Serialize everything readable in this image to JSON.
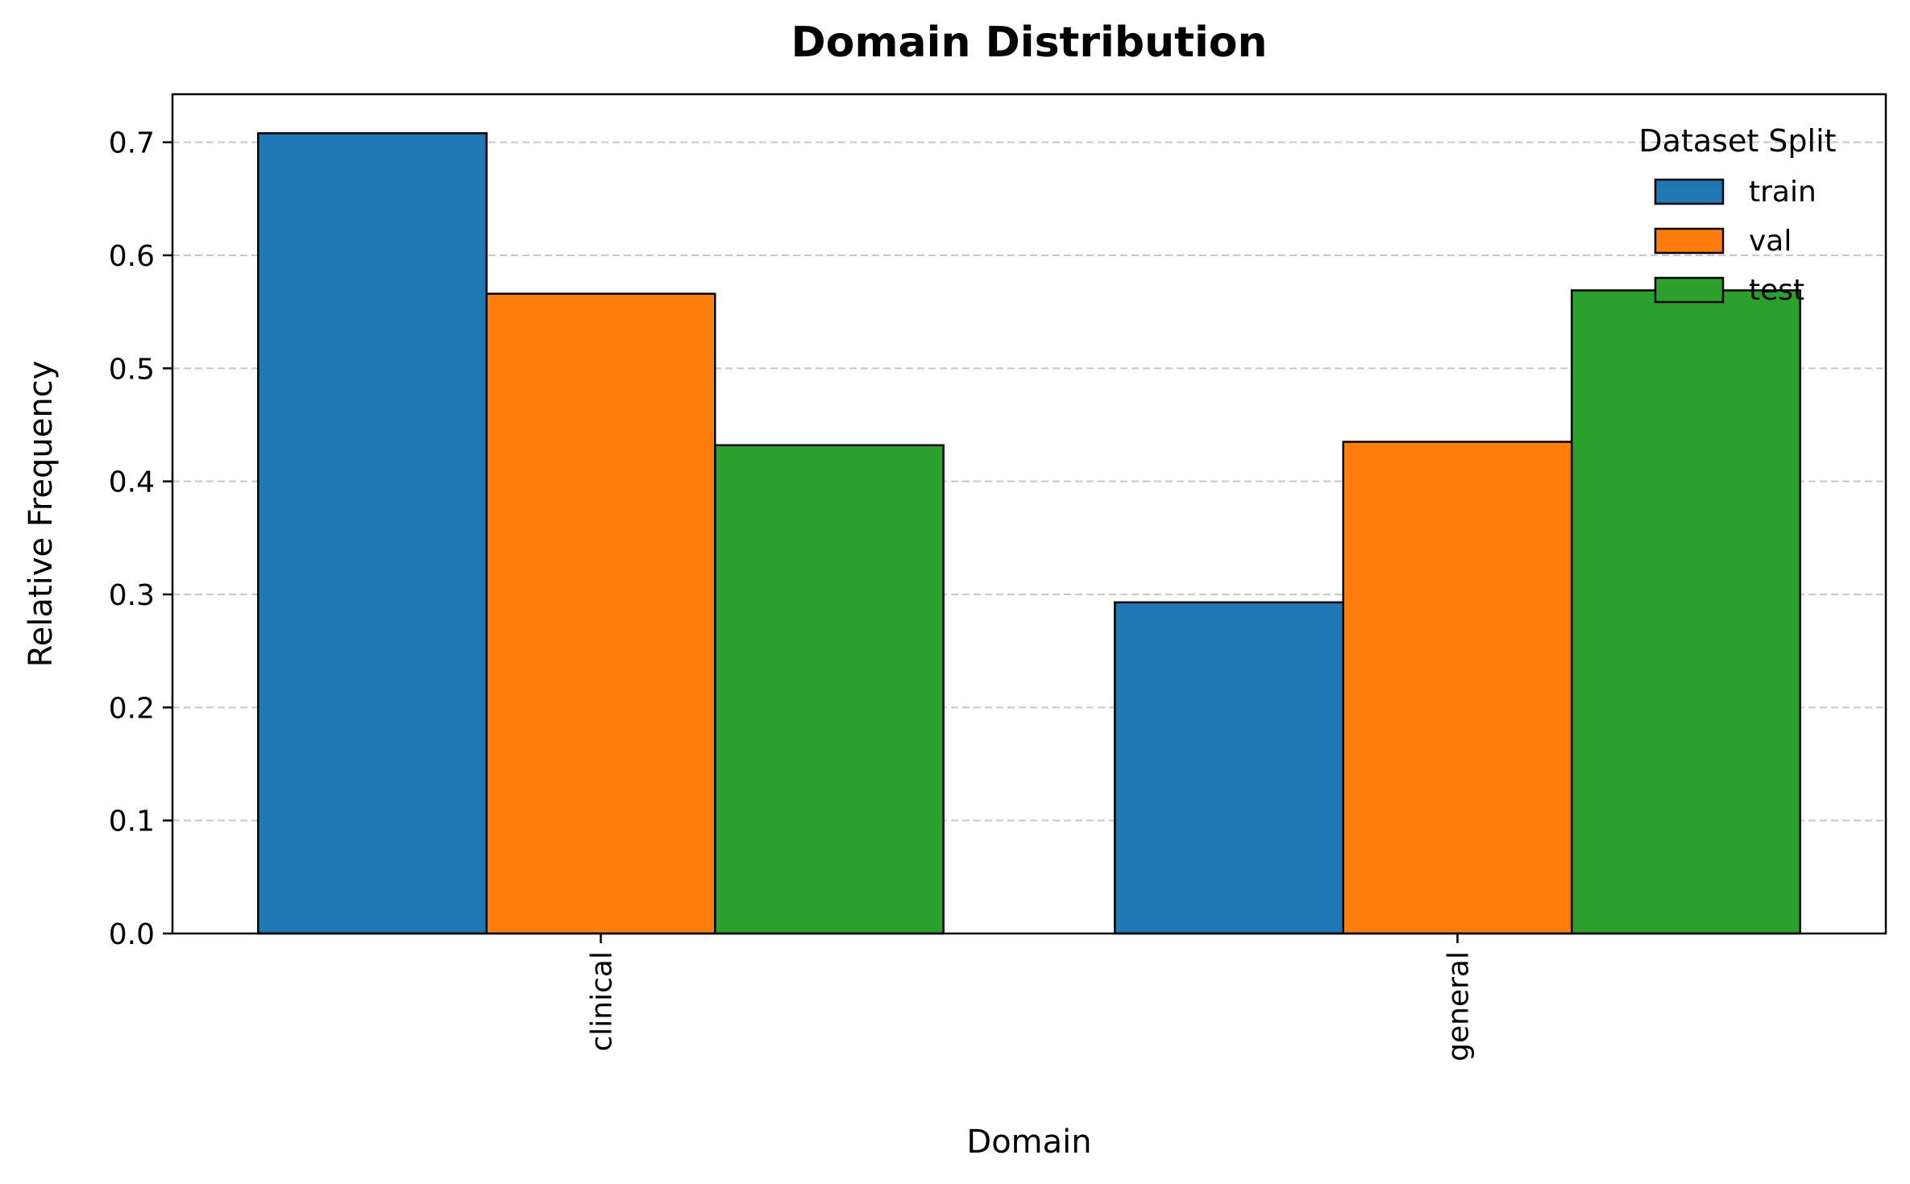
{
  "chart_data": {
    "type": "bar",
    "title": "Domain Distribution",
    "xlabel": "Domain",
    "ylabel": "Relative Frequency",
    "categories": [
      "clinical",
      "general"
    ],
    "series": [
      {
        "name": "train",
        "values": [
          0.708,
          0.293
        ],
        "color": "#1f77b4"
      },
      {
        "name": "val",
        "values": [
          0.566,
          0.435
        ],
        "color": "#ff7f0e"
      },
      {
        "name": "test",
        "values": [
          0.432,
          0.569
        ],
        "color": "#2ca02c"
      }
    ],
    "ylim": [
      0,
      0.7425
    ],
    "yticks": [
      0.0,
      0.1,
      0.2,
      0.3,
      0.4,
      0.5,
      0.6,
      0.7
    ],
    "ytick_labels": [
      "0.0",
      "0.1",
      "0.2",
      "0.3",
      "0.4",
      "0.5",
      "0.6",
      "0.7"
    ],
    "grid": "y-dashed",
    "legend": {
      "title": "Dataset Split",
      "placement": "top-right"
    },
    "xtick_rotation": "vertical"
  }
}
